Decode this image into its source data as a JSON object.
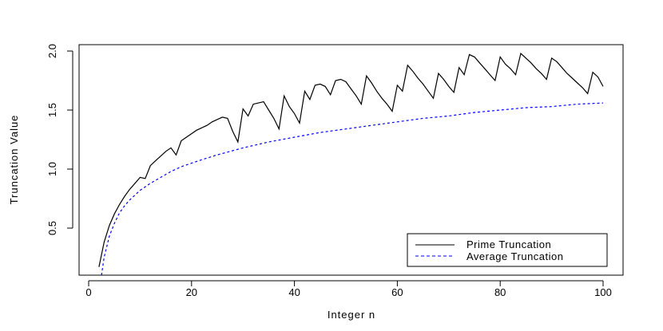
{
  "chart_data": {
    "type": "line",
    "xlabel": "Integer n",
    "ylabel": "Truncation Value",
    "xlim": [
      0,
      100
    ],
    "ylim": [
      0.1,
      2.05
    ],
    "x_ticks": [
      0,
      20,
      40,
      60,
      80,
      100
    ],
    "y_ticks": [
      0.5,
      1.0,
      1.5,
      2.0
    ],
    "x_tick_labels": [
      "0",
      "20",
      "40",
      "60",
      "80",
      "100"
    ],
    "y_tick_labels": [
      "0.5",
      "1.0",
      "1.5",
      "2.0"
    ],
    "legend_position": "bottom-right",
    "grid": false,
    "series": [
      {
        "name": "Prime Truncation",
        "color": "#000000",
        "style": "solid",
        "points": [
          [
            2,
            0.17
          ],
          [
            3,
            0.38
          ],
          [
            4,
            0.52
          ],
          [
            5,
            0.62
          ],
          [
            6,
            0.7
          ],
          [
            7,
            0.77
          ],
          [
            8,
            0.83
          ],
          [
            9,
            0.88
          ],
          [
            10,
            0.93
          ],
          [
            11,
            0.92
          ],
          [
            12,
            1.03
          ],
          [
            13,
            1.07
          ],
          [
            14,
            1.11
          ],
          [
            15,
            1.15
          ],
          [
            16,
            1.18
          ],
          [
            17,
            1.12
          ],
          [
            18,
            1.24
          ],
          [
            19,
            1.27
          ],
          [
            20,
            1.3
          ],
          [
            21,
            1.33
          ],
          [
            22,
            1.35
          ],
          [
            23,
            1.37
          ],
          [
            24,
            1.4
          ],
          [
            25,
            1.42
          ],
          [
            26,
            1.44
          ],
          [
            27,
            1.43
          ],
          [
            28,
            1.32
          ],
          [
            29,
            1.23
          ],
          [
            30,
            1.51
          ],
          [
            31,
            1.45
          ],
          [
            32,
            1.55
          ],
          [
            33,
            1.56
          ],
          [
            34,
            1.57
          ],
          [
            35,
            1.5
          ],
          [
            36,
            1.43
          ],
          [
            37,
            1.34
          ],
          [
            38,
            1.62
          ],
          [
            39,
            1.53
          ],
          [
            40,
            1.47
          ],
          [
            41,
            1.39
          ],
          [
            42,
            1.66
          ],
          [
            43,
            1.59
          ],
          [
            44,
            1.71
          ],
          [
            45,
            1.72
          ],
          [
            46,
            1.7
          ],
          [
            47,
            1.63
          ],
          [
            48,
            1.75
          ],
          [
            49,
            1.76
          ],
          [
            50,
            1.74
          ],
          [
            51,
            1.68
          ],
          [
            52,
            1.62
          ],
          [
            53,
            1.55
          ],
          [
            54,
            1.79
          ],
          [
            55,
            1.73
          ],
          [
            56,
            1.66
          ],
          [
            57,
            1.6
          ],
          [
            58,
            1.55
          ],
          [
            59,
            1.49
          ],
          [
            60,
            1.71
          ],
          [
            61,
            1.66
          ],
          [
            62,
            1.88
          ],
          [
            63,
            1.83
          ],
          [
            64,
            1.77
          ],
          [
            65,
            1.72
          ],
          [
            66,
            1.66
          ],
          [
            67,
            1.6
          ],
          [
            68,
            1.81
          ],
          [
            69,
            1.76
          ],
          [
            70,
            1.7
          ],
          [
            71,
            1.65
          ],
          [
            72,
            1.86
          ],
          [
            73,
            1.8
          ],
          [
            74,
            1.97
          ],
          [
            75,
            1.95
          ],
          [
            76,
            1.9
          ],
          [
            77,
            1.85
          ],
          [
            78,
            1.8
          ],
          [
            79,
            1.75
          ],
          [
            80,
            1.95
          ],
          [
            81,
            1.89
          ],
          [
            82,
            1.85
          ],
          [
            83,
            1.8
          ],
          [
            84,
            1.98
          ],
          [
            85,
            1.94
          ],
          [
            86,
            1.9
          ],
          [
            87,
            1.85
          ],
          [
            88,
            1.81
          ],
          [
            89,
            1.76
          ],
          [
            90,
            1.94
          ],
          [
            91,
            1.91
          ],
          [
            92,
            1.86
          ],
          [
            93,
            1.81
          ],
          [
            94,
            1.77
          ],
          [
            95,
            1.73
          ],
          [
            96,
            1.69
          ],
          [
            97,
            1.64
          ],
          [
            98,
            1.82
          ],
          [
            99,
            1.78
          ],
          [
            100,
            1.7
          ]
        ]
      },
      {
        "name": "Average Truncation",
        "color": "#0000ff",
        "style": "dashed",
        "points": [
          [
            2.5,
            0.1
          ],
          [
            3,
            0.25
          ],
          [
            4,
            0.43
          ],
          [
            5,
            0.54
          ],
          [
            6,
            0.63
          ],
          [
            7,
            0.69
          ],
          [
            8,
            0.74
          ],
          [
            9,
            0.78
          ],
          [
            10,
            0.82
          ],
          [
            12,
            0.88
          ],
          [
            14,
            0.93
          ],
          [
            16,
            0.98
          ],
          [
            18,
            1.02
          ],
          [
            20,
            1.05
          ],
          [
            22,
            1.08
          ],
          [
            25,
            1.12
          ],
          [
            30,
            1.18
          ],
          [
            35,
            1.23
          ],
          [
            40,
            1.27
          ],
          [
            45,
            1.31
          ],
          [
            50,
            1.34
          ],
          [
            55,
            1.37
          ],
          [
            60,
            1.4
          ],
          [
            65,
            1.43
          ],
          [
            70,
            1.45
          ],
          [
            75,
            1.48
          ],
          [
            80,
            1.5
          ],
          [
            85,
            1.52
          ],
          [
            90,
            1.53
          ],
          [
            95,
            1.55
          ],
          [
            100,
            1.56
          ]
        ]
      }
    ]
  }
}
